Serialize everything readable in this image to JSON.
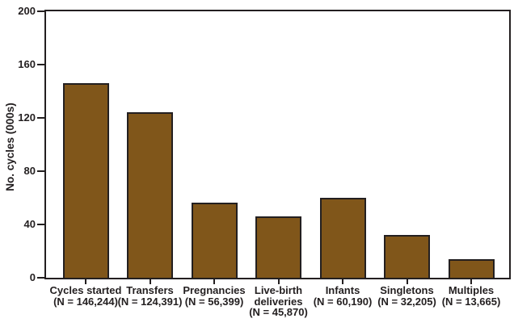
{
  "chart_data": {
    "type": "bar",
    "title": "",
    "xlabel": "",
    "ylabel": "No. cycles (000s)",
    "ylim": [
      0,
      200
    ],
    "yticks": [
      0,
      40,
      80,
      120,
      160,
      200
    ],
    "grid": false,
    "legend": "none",
    "frame": "full-box",
    "bar_color": "#80561A",
    "bar_edge_color": "#231F20",
    "axis_color": "#231F20",
    "background_color": "#FFFFFF",
    "categories": [
      {
        "name": "Cycles started",
        "n_text": "(N = 146,244)",
        "label_lines": [
          "Cycles started",
          "(N = 146,244)"
        ],
        "value": 146.244
      },
      {
        "name": "Transfers",
        "n_text": "(N = 124,391)",
        "label_lines": [
          "Transfers",
          "(N = 124,391)"
        ],
        "value": 124.391
      },
      {
        "name": "Pregnancies",
        "n_text": "(N = 56,399)",
        "label_lines": [
          "Pregnancies",
          "(N = 56,399)"
        ],
        "value": 56.399
      },
      {
        "name": "Live-birth deliveries",
        "n_text": "(N = 45,870)",
        "label_lines": [
          "Live-birth",
          "deliveries",
          "(N = 45,870)"
        ],
        "value": 45.87
      },
      {
        "name": "Infants",
        "n_text": "(N = 60,190)",
        "label_lines": [
          "Infants",
          "(N = 60,190)"
        ],
        "value": 60.19
      },
      {
        "name": "Singletons",
        "n_text": "(N = 32,205)",
        "label_lines": [
          "Singletons",
          "(N = 32,205)"
        ],
        "value": 32.205
      },
      {
        "name": "Multiples",
        "n_text": "(N = 13,665)",
        "label_lines": [
          "Multiples",
          "(N = 13,665)"
        ],
        "value": 13.665
      }
    ]
  }
}
